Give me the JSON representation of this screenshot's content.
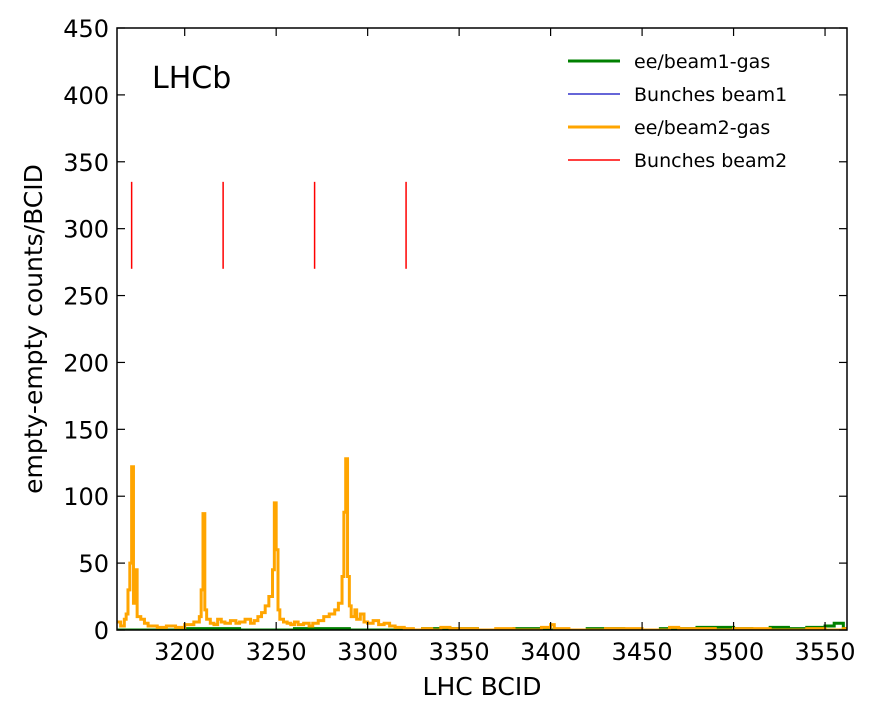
{
  "chart_data": {
    "type": "line",
    "title": "",
    "annotation": "LHCb",
    "xlabel": "LHC BCID",
    "ylabel": "empty-empty counts/BCID",
    "xlim": [
      3163,
      3562
    ],
    "ylim": [
      0,
      450
    ],
    "xticks": [
      3200,
      3250,
      3300,
      3350,
      3400,
      3450,
      3500,
      3550
    ],
    "yticks": [
      0,
      50,
      100,
      150,
      200,
      250,
      300,
      350,
      400,
      450
    ],
    "grid": false,
    "legend_position": "top-right",
    "colors": {
      "beam1_gas": "#008000",
      "bunches_beam1": "#3333cc",
      "beam2_gas": "#ffa500",
      "bunches_beam2": "#ff0000"
    },
    "series": [
      {
        "name": "ee/beam1-gas",
        "kind": "step",
        "points": [
          [
            3163,
            0
          ],
          [
            3200,
            1
          ],
          [
            3230,
            0
          ],
          [
            3260,
            1
          ],
          [
            3290,
            0
          ],
          [
            3320,
            0
          ],
          [
            3330,
            1
          ],
          [
            3360,
            0
          ],
          [
            3380,
            1
          ],
          [
            3400,
            0
          ],
          [
            3420,
            1
          ],
          [
            3440,
            0
          ],
          [
            3460,
            1
          ],
          [
            3480,
            2
          ],
          [
            3500,
            1
          ],
          [
            3510,
            0
          ],
          [
            3520,
            2
          ],
          [
            3530,
            1
          ],
          [
            3540,
            2
          ],
          [
            3550,
            3
          ],
          [
            3555,
            5
          ],
          [
            3560,
            1
          ]
        ]
      },
      {
        "name": "Bunches beam1",
        "kind": "lines",
        "points": []
      },
      {
        "name": "ee/beam2-gas",
        "kind": "step",
        "points": [
          [
            3163,
            6
          ],
          [
            3165,
            3
          ],
          [
            3167,
            8
          ],
          [
            3168,
            12
          ],
          [
            3169,
            30
          ],
          [
            3170,
            50
          ],
          [
            3171,
            122
          ],
          [
            3172,
            20
          ],
          [
            3173,
            45
          ],
          [
            3174,
            10
          ],
          [
            3176,
            8
          ],
          [
            3178,
            5
          ],
          [
            3180,
            3
          ],
          [
            3185,
            2
          ],
          [
            3190,
            3
          ],
          [
            3195,
            2
          ],
          [
            3200,
            4
          ],
          [
            3205,
            6
          ],
          [
            3208,
            10
          ],
          [
            3209,
            30
          ],
          [
            3210,
            87
          ],
          [
            3211,
            15
          ],
          [
            3212,
            8
          ],
          [
            3214,
            5
          ],
          [
            3216,
            4
          ],
          [
            3218,
            8
          ],
          [
            3220,
            6
          ],
          [
            3222,
            5
          ],
          [
            3225,
            7
          ],
          [
            3228,
            5
          ],
          [
            3230,
            6
          ],
          [
            3233,
            8
          ],
          [
            3236,
            5
          ],
          [
            3238,
            7
          ],
          [
            3240,
            10
          ],
          [
            3242,
            13
          ],
          [
            3244,
            18
          ],
          [
            3246,
            25
          ],
          [
            3248,
            45
          ],
          [
            3249,
            95
          ],
          [
            3250,
            60
          ],
          [
            3251,
            15
          ],
          [
            3252,
            8
          ],
          [
            3254,
            6
          ],
          [
            3256,
            5
          ],
          [
            3258,
            4
          ],
          [
            3260,
            6
          ],
          [
            3262,
            4
          ],
          [
            3265,
            5
          ],
          [
            3268,
            3
          ],
          [
            3270,
            5
          ],
          [
            3273,
            7
          ],
          [
            3276,
            10
          ],
          [
            3279,
            12
          ],
          [
            3282,
            15
          ],
          [
            3284,
            20
          ],
          [
            3286,
            40
          ],
          [
            3287,
            88
          ],
          [
            3288,
            128
          ],
          [
            3289,
            40
          ],
          [
            3290,
            18
          ],
          [
            3291,
            10
          ],
          [
            3293,
            15
          ],
          [
            3294,
            8
          ],
          [
            3296,
            12
          ],
          [
            3298,
            6
          ],
          [
            3300,
            5
          ],
          [
            3303,
            7
          ],
          [
            3306,
            4
          ],
          [
            3309,
            5
          ],
          [
            3312,
            3
          ],
          [
            3315,
            2
          ],
          [
            3320,
            1
          ],
          [
            3325,
            0
          ],
          [
            3330,
            1
          ],
          [
            3335,
            0
          ],
          [
            3340,
            2
          ],
          [
            3345,
            1
          ],
          [
            3350,
            1
          ],
          [
            3360,
            0
          ],
          [
            3370,
            1
          ],
          [
            3380,
            0
          ],
          [
            3395,
            2
          ],
          [
            3400,
            4
          ],
          [
            3402,
            1
          ],
          [
            3410,
            0
          ],
          [
            3430,
            1
          ],
          [
            3450,
            0
          ],
          [
            3465,
            2
          ],
          [
            3470,
            1
          ],
          [
            3490,
            0
          ],
          [
            3500,
            1
          ],
          [
            3520,
            0
          ],
          [
            3540,
            1
          ],
          [
            3550,
            0
          ],
          [
            3560,
            1
          ]
        ]
      },
      {
        "name": "Bunches beam2",
        "kind": "lines",
        "x": [
          3171,
          3221,
          3271,
          3321
        ],
        "y_range": [
          270,
          335
        ]
      }
    ]
  }
}
